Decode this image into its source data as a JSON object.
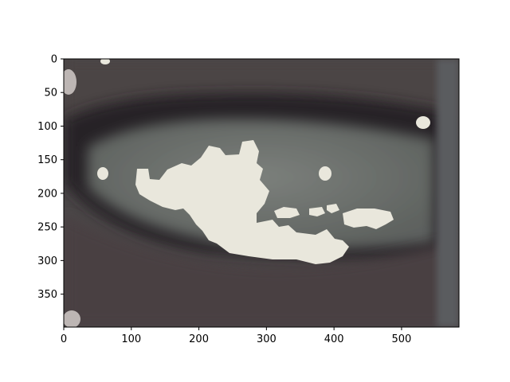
{
  "chart_data": {
    "type": "image",
    "title": "",
    "xlabel": "",
    "ylabel": "",
    "xlim": [
      0,
      585
    ],
    "ylim": [
      399,
      0
    ],
    "x_ticks": [
      0,
      100,
      200,
      300,
      400,
      500
    ],
    "y_ticks": [
      0,
      50,
      100,
      150,
      200,
      250,
      300,
      350
    ],
    "grid": false,
    "legend": "none",
    "image_colors": {
      "lips": "#4a4244",
      "shadow": "#232223",
      "teeth": "#6f7470",
      "highlight": "#e9e7dc"
    }
  }
}
